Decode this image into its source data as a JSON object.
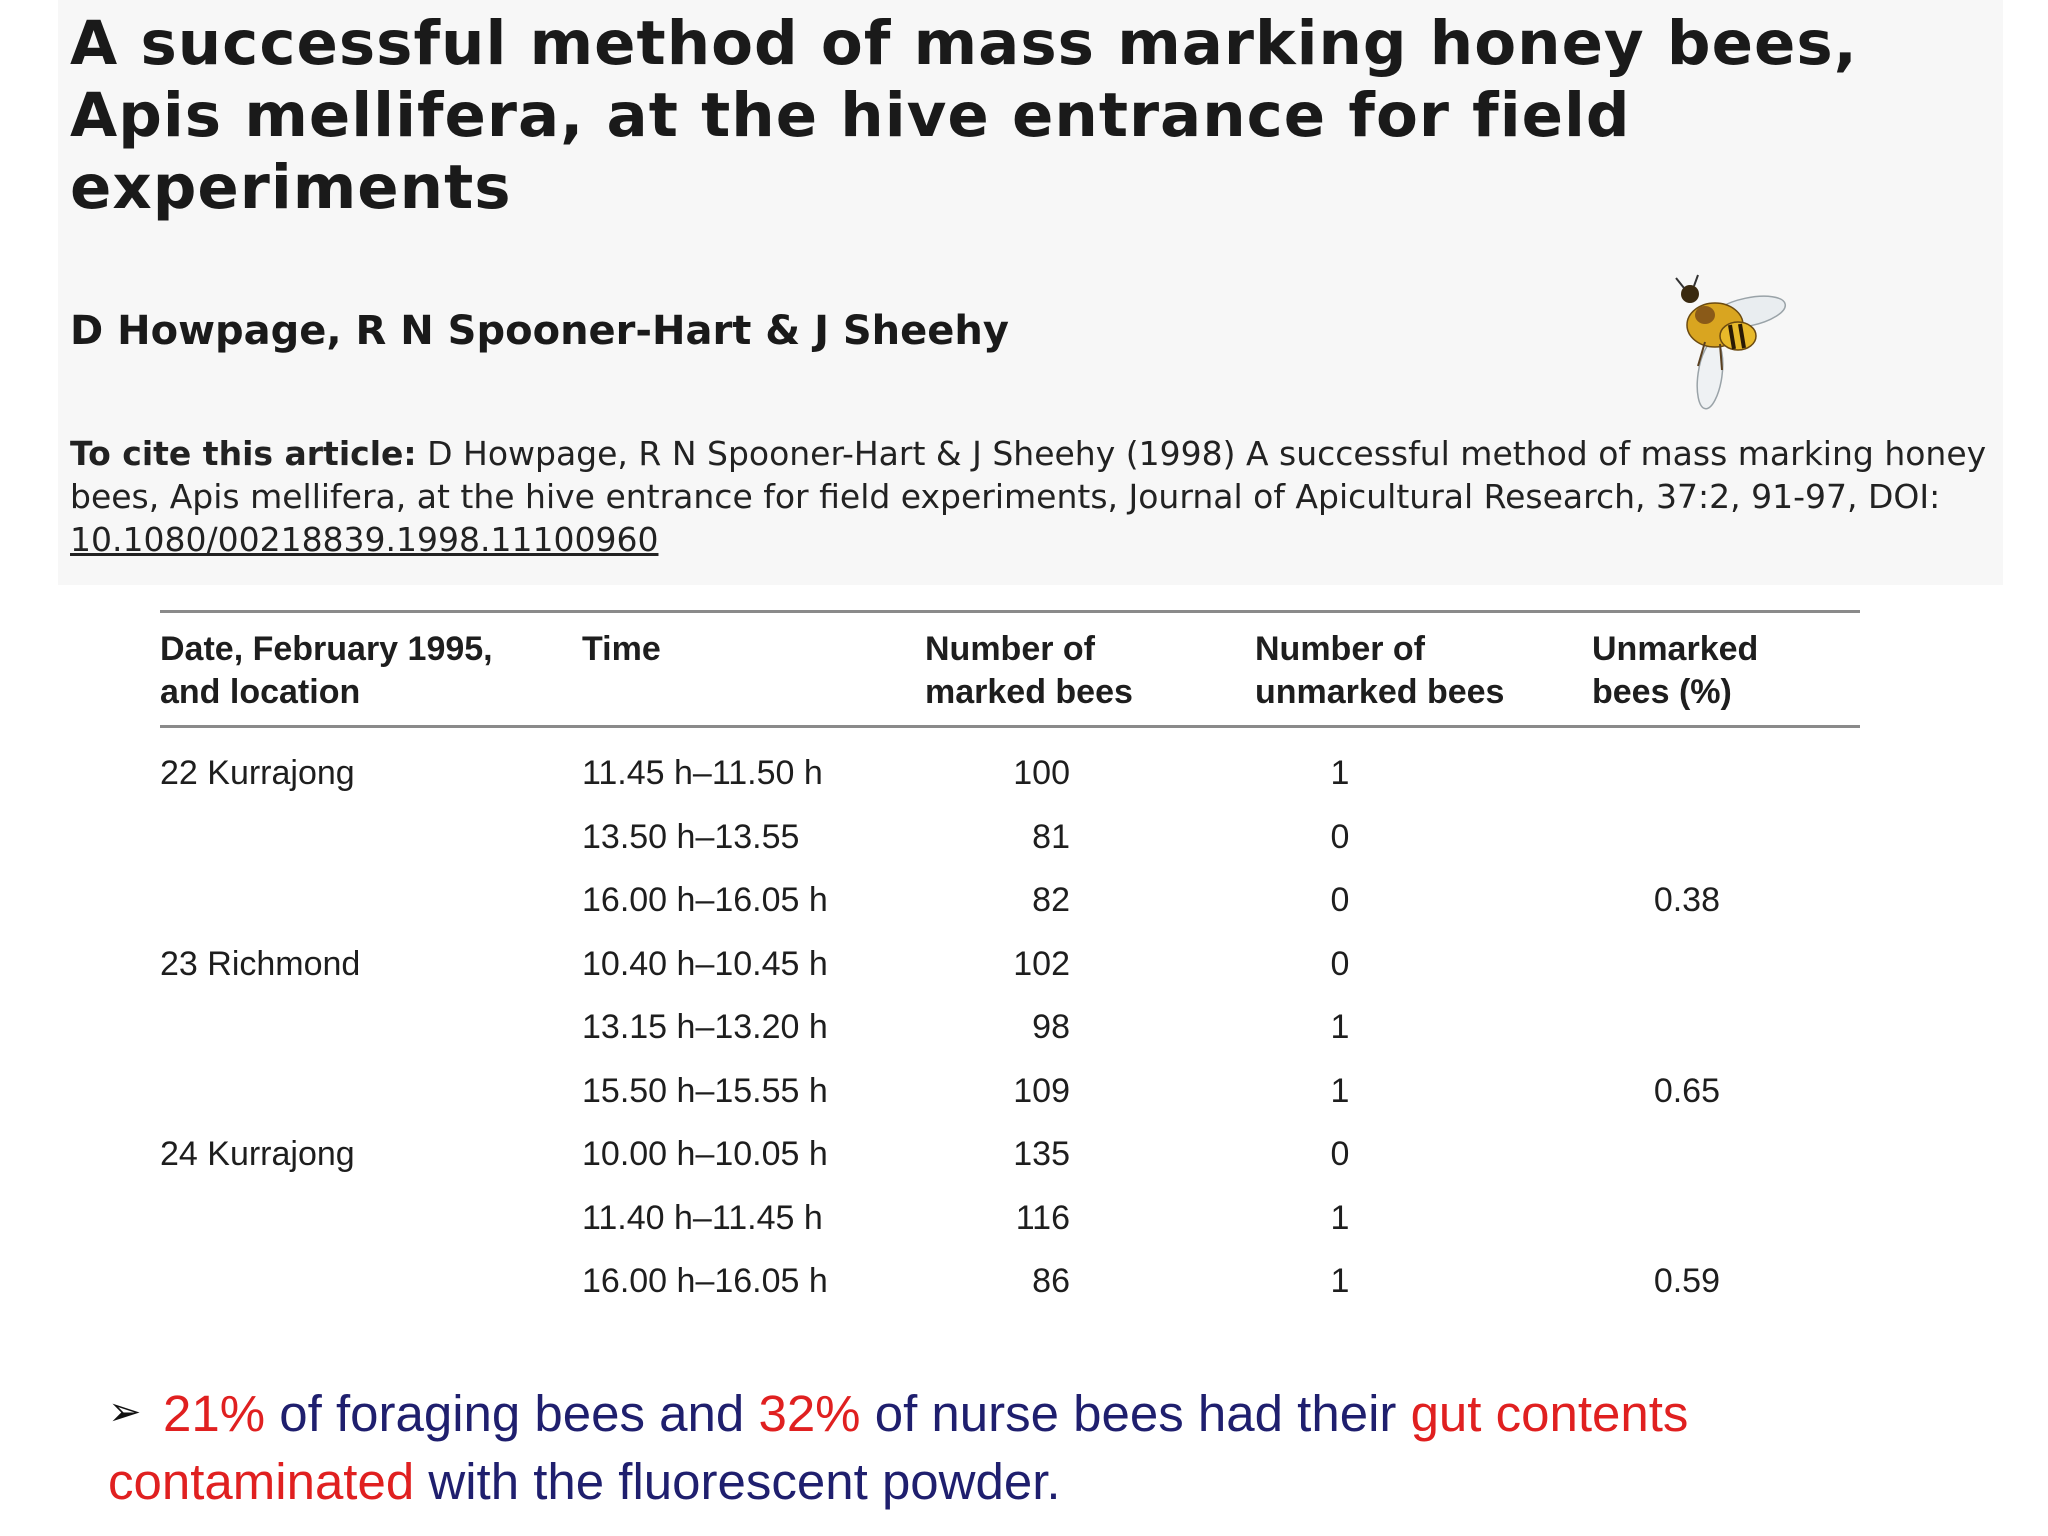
{
  "article": {
    "title": "A successful method of mass marking honey bees, Apis mellifera, at the hive entrance for field experiments",
    "authors": "D Howpage, R N Spooner-Hart & J Sheehy",
    "cite_lead": "To cite this article:",
    "cite_body": "D Howpage, R N Spooner-Hart & J Sheehy (1998) A successful method of mass marking honey bees, Apis mellifera, at the hive entrance for field experiments, Journal of Apicultural Research, 37:2, 91-97, DOI: ",
    "doi": "10.1080/00218839.1998.11100960",
    "bee_icon": "bee-illustration"
  },
  "table": {
    "headers": [
      "Date, February 1995,\nand location",
      "Time",
      "Number of\nmarked bees",
      "Number of\nunmarked bees",
      "Unmarked\nbees (%)"
    ],
    "rows": [
      {
        "location": "22 Kurrajong",
        "time": "11.45 h–11.50 h",
        "marked": "100",
        "unmarked": "1",
        "pct": ""
      },
      {
        "location": "",
        "time": "13.50 h–13.55",
        "marked": "81",
        "unmarked": "0",
        "pct": ""
      },
      {
        "location": "",
        "time": "16.00 h–16.05 h",
        "marked": "82",
        "unmarked": "0",
        "pct": "0.38"
      },
      {
        "location": "23 Richmond",
        "time": "10.40 h–10.45 h",
        "marked": "102",
        "unmarked": "0",
        "pct": ""
      },
      {
        "location": "",
        "time": "13.15 h–13.20 h",
        "marked": "98",
        "unmarked": "1",
        "pct": ""
      },
      {
        "location": "",
        "time": "15.50 h–15.55 h",
        "marked": "109",
        "unmarked": "1",
        "pct": "0.65"
      },
      {
        "location": "24 Kurrajong",
        "time": "10.00 h–10.05 h",
        "marked": "135",
        "unmarked": "0",
        "pct": ""
      },
      {
        "location": "",
        "time": "11.40 h–11.45 h",
        "marked": "116",
        "unmarked": "1",
        "pct": ""
      },
      {
        "location": "",
        "time": "16.00 h–16.05 h",
        "marked": "86",
        "unmarked": "1",
        "pct": "0.59"
      }
    ]
  },
  "bullet": {
    "marker": "➢",
    "part1_red": "21%",
    "part2": " of foraging bees and ",
    "part3_red": "32%",
    "part4": " of nurse bees had their ",
    "part5_red": "gut contents contaminated",
    "part6": " with the fluorescent powder.",
    "highlight_color": "#e02020",
    "text_color": "#1f1f6e"
  }
}
